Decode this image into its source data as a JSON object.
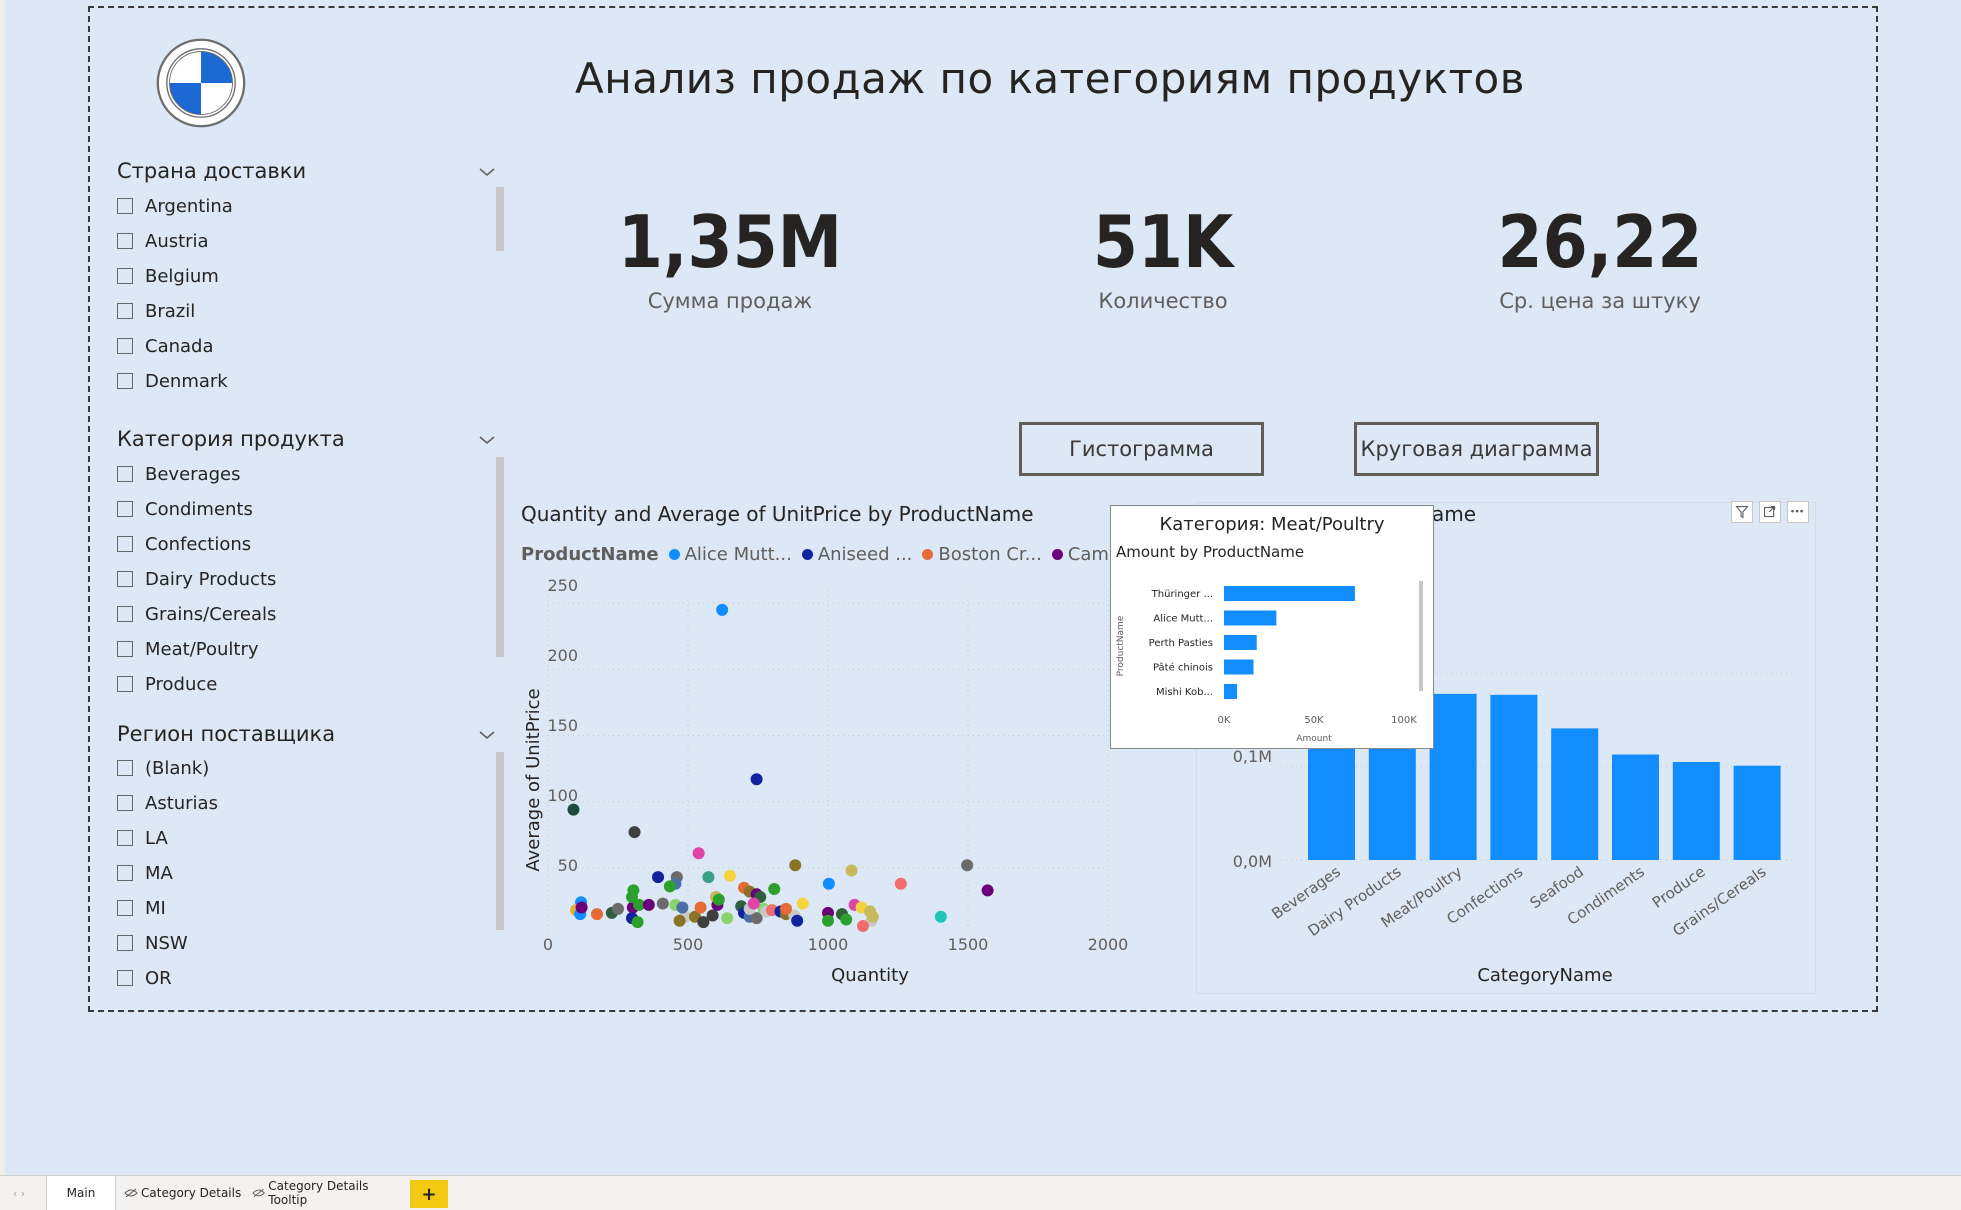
{
  "title": "Анализ продаж по категориям продуктов",
  "kpis": [
    {
      "value": "1,35M",
      "label": "Сумма продаж"
    },
    {
      "value": "51K",
      "label": "Количество"
    },
    {
      "value": "26,22",
      "label": "Ср. цена за штуку"
    }
  ],
  "slicers": [
    {
      "title": "Страна доставки",
      "options": [
        "Argentina",
        "Austria",
        "Belgium",
        "Brazil",
        "Canada",
        "Denmark"
      ]
    },
    {
      "title": "Категория продукта",
      "options": [
        "Beverages",
        "Condiments",
        "Confections",
        "Dairy Products",
        "Grains/Cereals",
        "Meat/Poultry",
        "Produce"
      ]
    },
    {
      "title": "Регион поставщика",
      "options": [
        "(Blank)",
        "Asturias",
        "LA",
        "MA",
        "MI",
        "NSW",
        "OR"
      ]
    }
  ],
  "buttons": {
    "histogram": "Гистограмма",
    "pie": "Круговая диаграмма"
  },
  "scatter": {
    "title": "Quantity and Average of UnitPrice by ProductName",
    "legend_title": "ProductName",
    "legend": [
      {
        "name": "Alice Mutt...",
        "color": "#118dff"
      },
      {
        "name": "Aniseed ...",
        "color": "#12239e"
      },
      {
        "name": "Boston Cr...",
        "color": "#e66c37"
      },
      {
        "name": "Camem...",
        "color": "#6b007b"
      }
    ],
    "xlabel": "Quantity",
    "ylabel": "Average of UnitPrice",
    "xticks": [
      "0",
      "500",
      "1000",
      "1500",
      "2000"
    ],
    "yticks": [
      "50",
      "100",
      "150",
      "200",
      "250"
    ]
  },
  "bar": {
    "title_visible": "ame",
    "xlabel": "CategoryName",
    "yticks": [
      "0,0M",
      "0,1M"
    ],
    "categories": [
      "Beverages",
      "Dairy Products",
      "Meat/Poultry",
      "Confections",
      "Seafood",
      "Condiments",
      "Produce",
      "Grains/Cereals"
    ]
  },
  "tooltip": {
    "title": "Категория: Meat/Poultry",
    "subtitle": "Amount by ProductName",
    "ylabel": "ProductName",
    "xlabel": "Amount",
    "xticks": [
      "0K",
      "50K",
      "100K"
    ],
    "items": [
      "Thüringer ...",
      "Alice Mutt...",
      "Perth Pasties",
      "Pâté chinois",
      "Mishi Kob..."
    ]
  },
  "tabs": [
    "Main",
    "Category Details",
    "Category Details Tooltip",
    "+"
  ],
  "chart_data": [
    {
      "type": "scatter",
      "title": "Quantity and Average of UnitPrice by ProductName",
      "xlabel": "Quantity",
      "ylabel": "Average of UnitPrice",
      "xlim": [
        0,
        2000
      ],
      "ylim": [
        0,
        260
      ],
      "points": [
        [
          622,
          245,
          "#118dff"
        ],
        [
          745,
          117,
          "#12239e"
        ],
        [
          91,
          94,
          "#1c4a3c"
        ],
        [
          309,
          77,
          "#3f3f3f"
        ],
        [
          1497,
          52,
          "#6b6b6b"
        ],
        [
          538,
          61,
          "#e044a7"
        ],
        [
          883,
          52,
          "#8a7326"
        ],
        [
          1084,
          48,
          "#c8b85e"
        ],
        [
          1570,
          33,
          "#6b007b"
        ],
        [
          1260,
          38,
          "#f26c6c"
        ],
        [
          1403,
          13,
          "#20c4b8"
        ],
        [
          1003,
          38,
          "#118dff"
        ],
        [
          650,
          44,
          "#f5d33f"
        ],
        [
          573,
          43,
          "#3c9f8a"
        ],
        [
          460,
          43,
          "#6b6b6b"
        ],
        [
          455,
          38,
          "#4a6fa8"
        ],
        [
          435,
          36,
          "#2ca02c"
        ],
        [
          393,
          43,
          "#12239e"
        ],
        [
          305,
          33,
          "#2ca02c"
        ],
        [
          118,
          24,
          "#118dff"
        ],
        [
          100,
          18,
          "#e0b040"
        ],
        [
          115,
          15,
          "#118dff"
        ],
        [
          175,
          15,
          "#e66c37"
        ],
        [
          228,
          16,
          "#2f5f3f"
        ],
        [
          250,
          19,
          "#6b6b6b"
        ],
        [
          303,
          20,
          "#6b007b"
        ],
        [
          325,
          22,
          "#2ca02c"
        ],
        [
          360,
          22,
          "#6b007b"
        ],
        [
          410,
          23,
          "#6b6b6b"
        ],
        [
          455,
          22,
          "#8ad56b"
        ],
        [
          490,
          13,
          "#c8c8c8"
        ],
        [
          470,
          10,
          "#8a7326"
        ],
        [
          525,
          13,
          "#8a7326"
        ],
        [
          545,
          20,
          "#e66c37"
        ],
        [
          588,
          14,
          "#3f3f3f"
        ],
        [
          605,
          22,
          "#6b007b"
        ],
        [
          600,
          28,
          "#c8b85e"
        ],
        [
          610,
          26,
          "#2ca02c"
        ],
        [
          700,
          35,
          "#e66c37"
        ],
        [
          720,
          32,
          "#8a7326"
        ],
        [
          745,
          30,
          "#6b007b"
        ],
        [
          758,
          28,
          "#2f5f3f"
        ],
        [
          808,
          34,
          "#2ca02c"
        ],
        [
          690,
          21,
          "#2f5f3f"
        ],
        [
          700,
          16,
          "#12239e"
        ],
        [
          720,
          13,
          "#4a6fa8"
        ],
        [
          745,
          12,
          "#6b6b6b"
        ],
        [
          770,
          19,
          "#8ad56b"
        ],
        [
          780,
          17,
          "#c8c8c8"
        ],
        [
          800,
          18,
          "#f26c6c"
        ],
        [
          830,
          17,
          "#12239e"
        ],
        [
          850,
          15,
          "#8a7326"
        ],
        [
          880,
          14,
          "#c8c8c8"
        ],
        [
          890,
          10,
          "#12239e"
        ],
        [
          910,
          23,
          "#f5d33f"
        ],
        [
          1000,
          16,
          "#6b007b"
        ],
        [
          1000,
          10,
          "#2ca02c"
        ],
        [
          1050,
          15,
          "#2f5f3f"
        ],
        [
          1065,
          11,
          "#2ca02c"
        ],
        [
          1095,
          22,
          "#e044a7"
        ],
        [
          1120,
          20,
          "#f5d33f"
        ],
        [
          1150,
          17,
          "#c8b85e"
        ],
        [
          1155,
          10,
          "#c8c8c8"
        ],
        [
          1125,
          6,
          "#f26c6c"
        ],
        [
          1160,
          13,
          "#c8b85e"
        ],
        [
          720,
          19,
          "#c8c8c8"
        ],
        [
          735,
          23,
          "#e044a7"
        ],
        [
          300,
          12,
          "#12239e"
        ],
        [
          320,
          9,
          "#2ca02c"
        ],
        [
          480,
          20,
          "#4a6fa8"
        ],
        [
          120,
          20,
          "#6b007b"
        ],
        [
          555,
          9,
          "#3f3f3f"
        ],
        [
          850,
          19,
          "#e66c37"
        ],
        [
          300,
          28,
          "#2ca02c"
        ],
        [
          640,
          12,
          "#8ad56b"
        ]
      ]
    },
    {
      "type": "bar",
      "xlabel": "CategoryName",
      "categories": [
        "Beverages",
        "Dairy Products",
        "Meat/Poultry",
        "Confections",
        "Seafood",
        "Condiments",
        "Produce",
        "Grains/Cereals"
      ],
      "values": [
        0.286,
        0.251,
        0.178,
        0.177,
        0.141,
        0.113,
        0.105,
        0.101
      ],
      "unit": "M",
      "ylim": [
        0,
        0.3
      ]
    },
    {
      "type": "bar",
      "orientation": "horizontal",
      "title": "Категория: Meat/Poultry",
      "subtitle": "Amount by ProductName",
      "categories": [
        "Thüringer ...",
        "Alice Mutt...",
        "Perth Pasties",
        "Pâté chinois",
        "Mishi Kob..."
      ],
      "values": [
        80,
        32,
        20,
        18,
        8
      ],
      "unit": "K",
      "xlim": [
        0,
        110
      ]
    }
  ]
}
